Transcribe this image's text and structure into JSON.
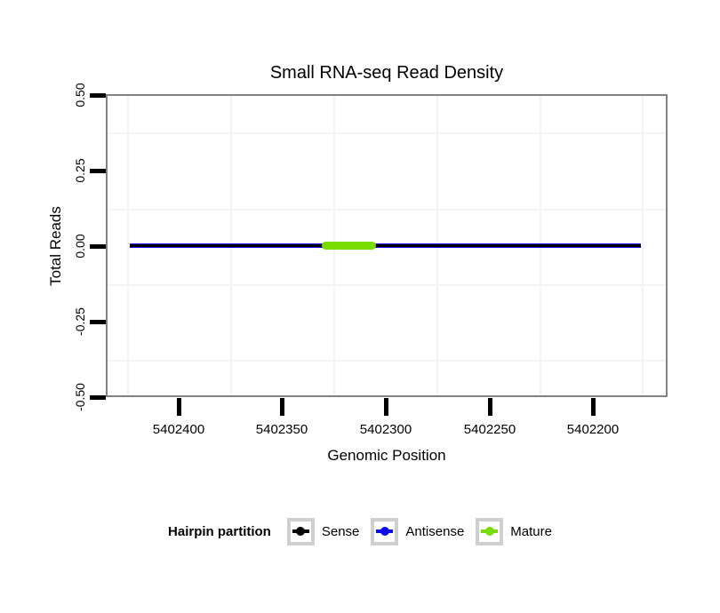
{
  "title": "Small RNA-seq Read Density",
  "axes": {
    "x": {
      "label": "Genomic Position",
      "ticks": [
        "5402400",
        "5402350",
        "5402300",
        "5402250",
        "5402200"
      ]
    },
    "y": {
      "label": "Total Reads",
      "ticks": [
        "0.50",
        "0.25",
        "0.00",
        "-0.25",
        "-0.50"
      ]
    }
  },
  "legend": {
    "title": "Hairpin partition",
    "entries": [
      {
        "label": "Sense",
        "color": "#000000"
      },
      {
        "label": "Antisense",
        "color": "#0B0BEE"
      },
      {
        "label": "Mature",
        "color": "#77DD00"
      }
    ]
  },
  "colors": {
    "panel_border": "#828282",
    "tick_marks": "#000000",
    "minor_gridlines": "#F4F4F4",
    "legend_key_border": "#CFCFCF",
    "background": "#FFFFFF"
  },
  "chart_data": {
    "type": "line",
    "title": "Small RNA-seq Read Density",
    "xlabel": "Genomic Position",
    "ylabel": "Total Reads",
    "x_axis_reversed": true,
    "xlim": [
      5402435,
      5402164
    ],
    "ylim": [
      -0.5,
      0.5
    ],
    "x_ticks": [
      5402400,
      5402350,
      5402300,
      5402250,
      5402200
    ],
    "y_ticks": [
      0.5,
      0.25,
      0.0,
      -0.25,
      -0.5
    ],
    "grid": "minor gridlines only, very light gray",
    "legend_position": "bottom",
    "legend_title": "Hairpin partition",
    "series": [
      {
        "name": "Sense",
        "color": "#000000",
        "geom": "segment",
        "y": 0,
        "x_start": 5402424,
        "x_end": 5402177,
        "thickness": "thin"
      },
      {
        "name": "Antisense",
        "color": "#0B0BEE",
        "geom": "segment",
        "y": 0,
        "x_start": 5402424,
        "x_end": 5402177,
        "thickness": "thin"
      },
      {
        "name": "Mature",
        "color": "#77DD00",
        "geom": "segment",
        "y": 0,
        "x_start": 5402330,
        "x_end": 5402304,
        "thickness": "thick"
      }
    ]
  }
}
